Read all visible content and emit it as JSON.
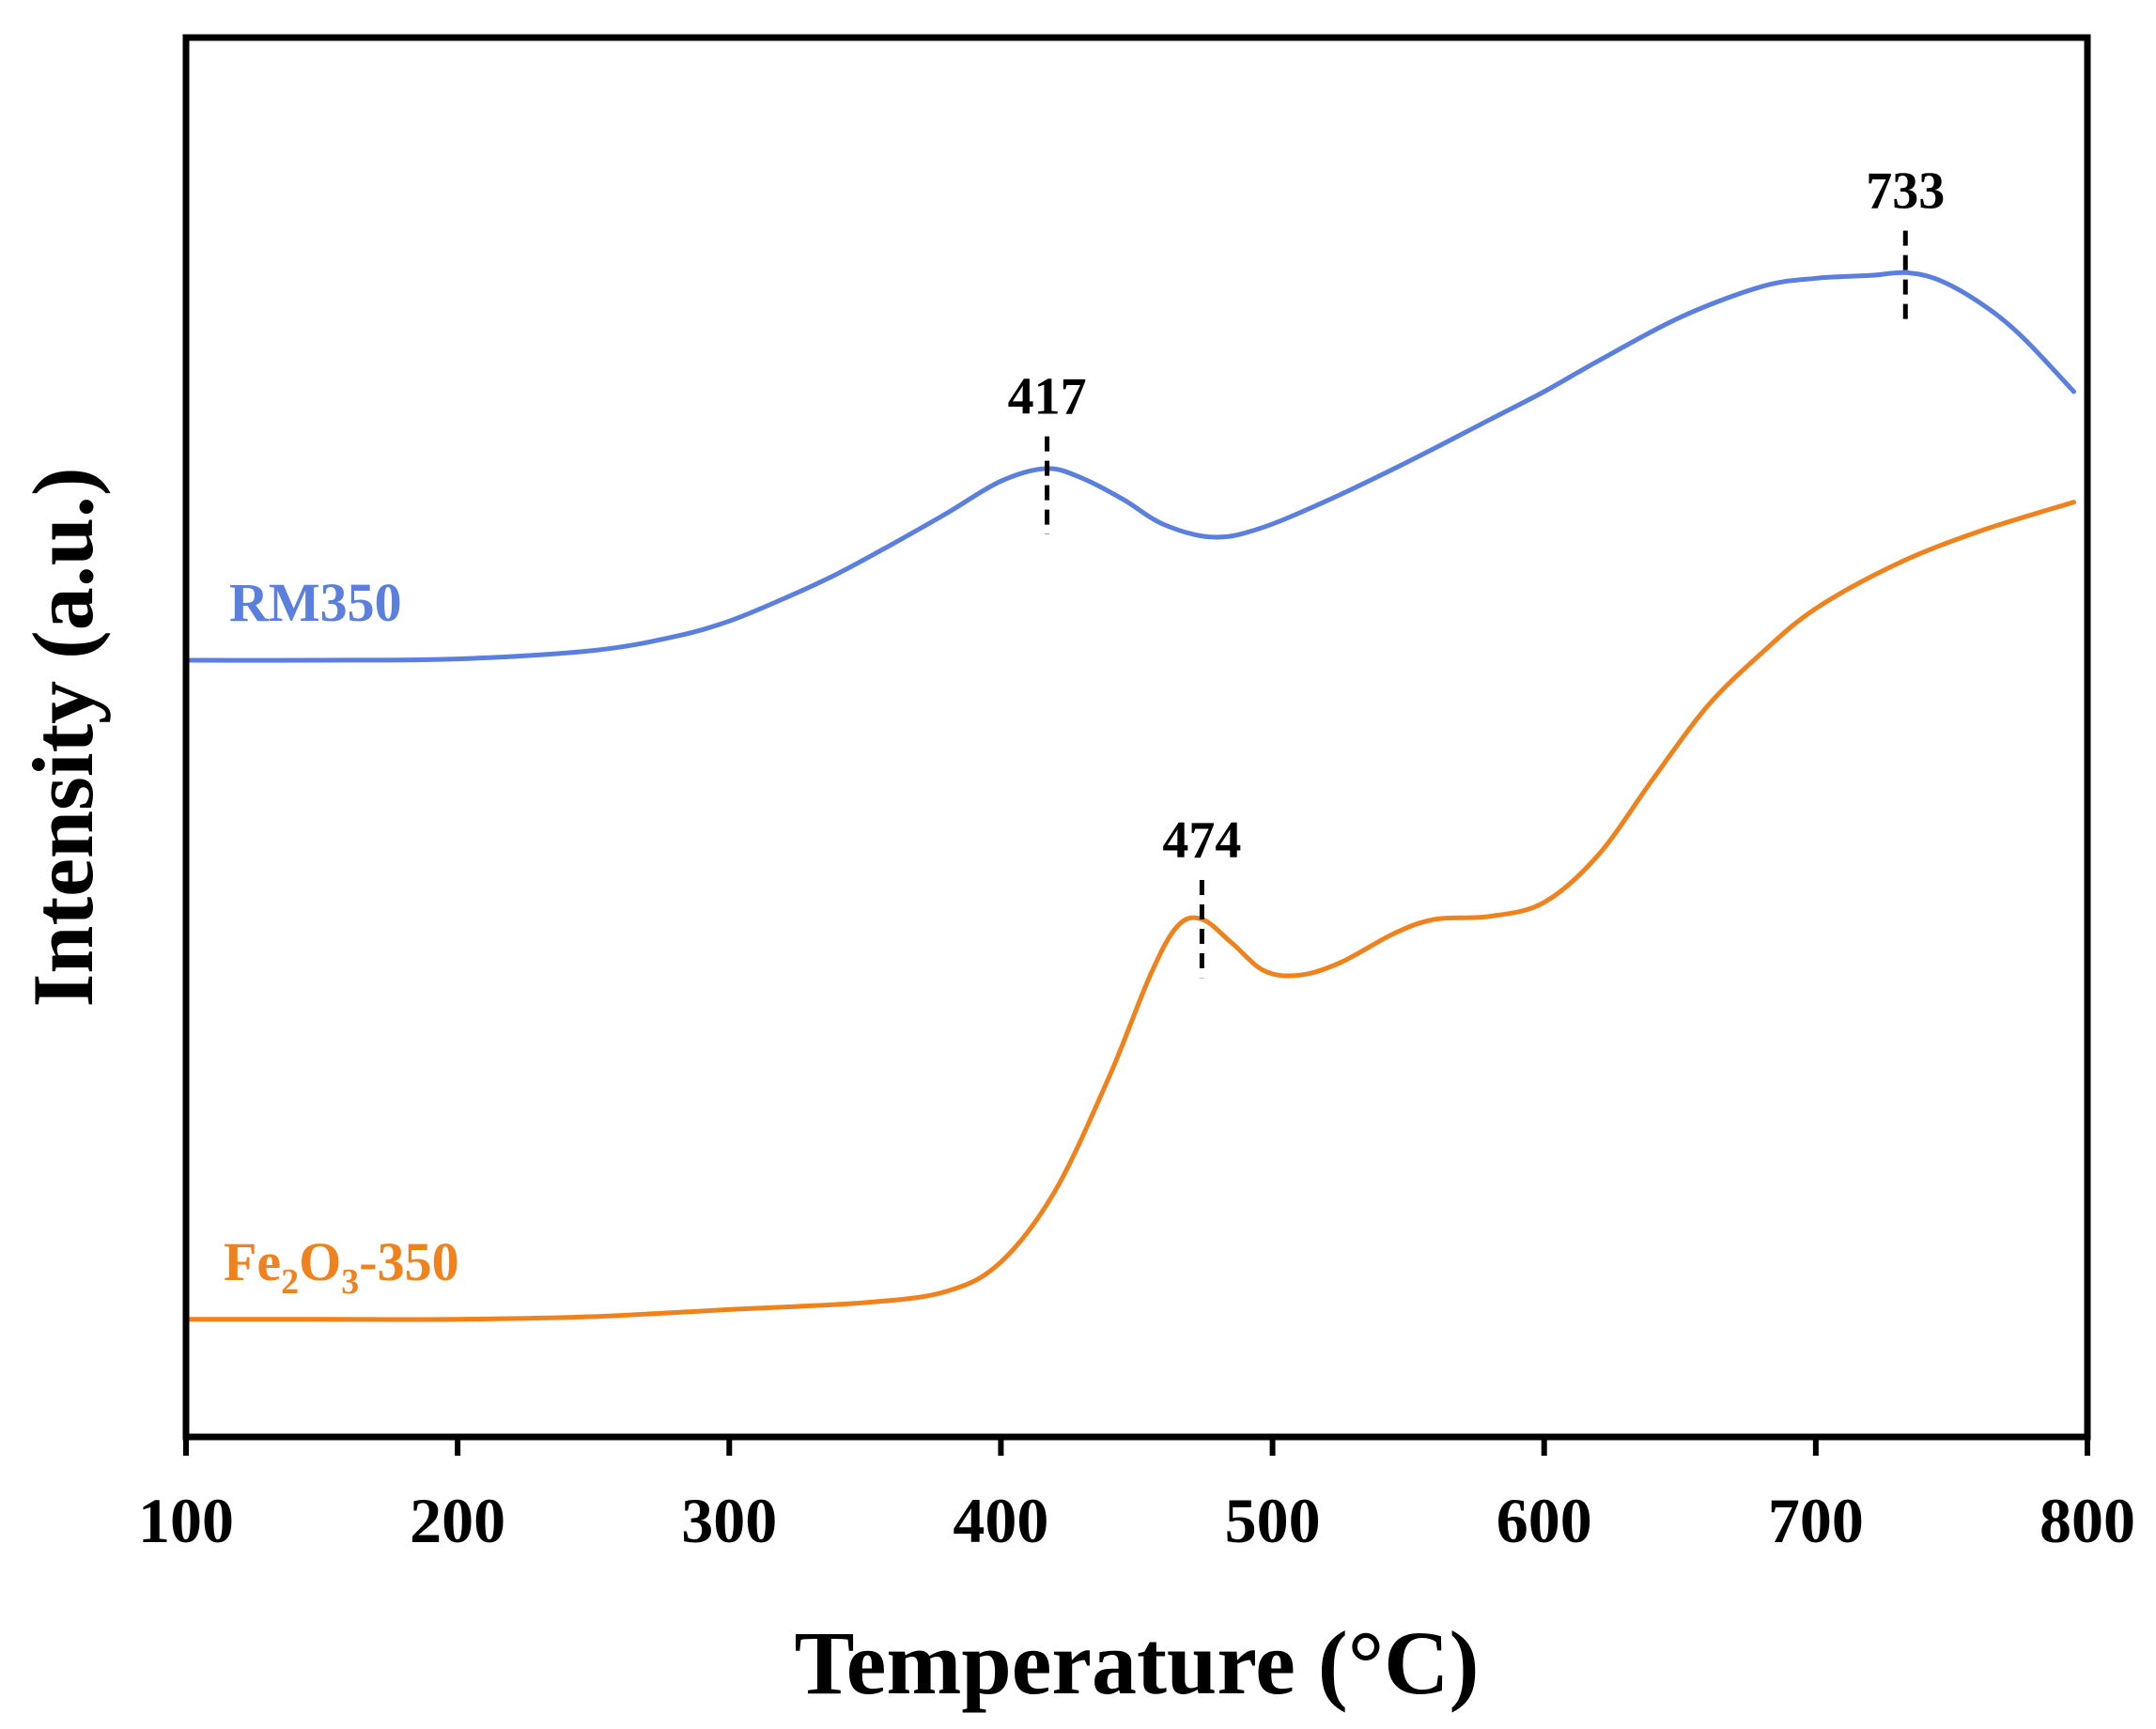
{
  "chart_data": {
    "type": "line",
    "title": "",
    "xlabel": "Temperature (°C)",
    "ylabel": "Intensity (a.u.)",
    "xlim": [
      100,
      800
    ],
    "ylim": [
      0,
      1
    ],
    "x_ticks": [
      "100",
      "200",
      "300",
      "400",
      "500",
      "600",
      "700",
      "800"
    ],
    "x_tick_values": [
      100,
      200,
      300,
      400,
      500,
      600,
      700,
      800
    ],
    "y_ticks_shown": false,
    "grid": false,
    "series": [
      {
        "name": "RM350",
        "label": "RM350",
        "color": "#5b7fdf",
        "x": [
          100,
          150,
          200,
          250,
          280,
          300,
          320,
          340,
          360,
          380,
          400,
          417,
          430,
          445,
          460,
          478,
          495,
          520,
          550,
          580,
          600,
          620,
          650,
          680,
          700,
          720,
          733,
          745,
          760,
          775,
          795
        ],
        "y": [
          0.555,
          0.555,
          0.556,
          0.562,
          0.572,
          0.583,
          0.599,
          0.617,
          0.638,
          0.66,
          0.683,
          0.692,
          0.685,
          0.67,
          0.652,
          0.643,
          0.649,
          0.669,
          0.697,
          0.727,
          0.747,
          0.769,
          0.8,
          0.822,
          0.828,
          0.83,
          0.832,
          0.827,
          0.811,
          0.788,
          0.747
        ]
      },
      {
        "name": "Fe2O3-350",
        "label_parts": [
          "Fe",
          "2",
          "O",
          "3",
          "-350"
        ],
        "color": "#f0821e",
        "x": [
          100,
          150,
          200,
          250,
          300,
          350,
          380,
          400,
          420,
          440,
          455,
          465,
          474,
          485,
          497,
          510,
          525,
          545,
          560,
          580,
          600,
          620,
          640,
          660,
          680,
          700,
          730,
          760,
          795
        ],
        "y": [
          0.084,
          0.084,
          0.084,
          0.086,
          0.091,
          0.096,
          0.104,
          0.125,
          0.176,
          0.258,
          0.33,
          0.365,
          0.37,
          0.353,
          0.333,
          0.33,
          0.339,
          0.36,
          0.37,
          0.372,
          0.382,
          0.416,
          0.47,
          0.522,
          0.56,
          0.592,
          0.624,
          0.647,
          0.668
        ]
      }
    ],
    "annotations": [
      {
        "text": "417",
        "x": 417,
        "y_top": 0.715,
        "y_bottom": 0.645,
        "style": "dashed"
      },
      {
        "text": "733",
        "x": 733,
        "y_top": 0.862,
        "y_bottom": 0.797,
        "style": "dashed"
      },
      {
        "text": "474",
        "x": 474,
        "y_top": 0.398,
        "y_bottom": 0.328,
        "style": "dashed"
      }
    ],
    "legend": "inline labels at left, above each curve"
  }
}
